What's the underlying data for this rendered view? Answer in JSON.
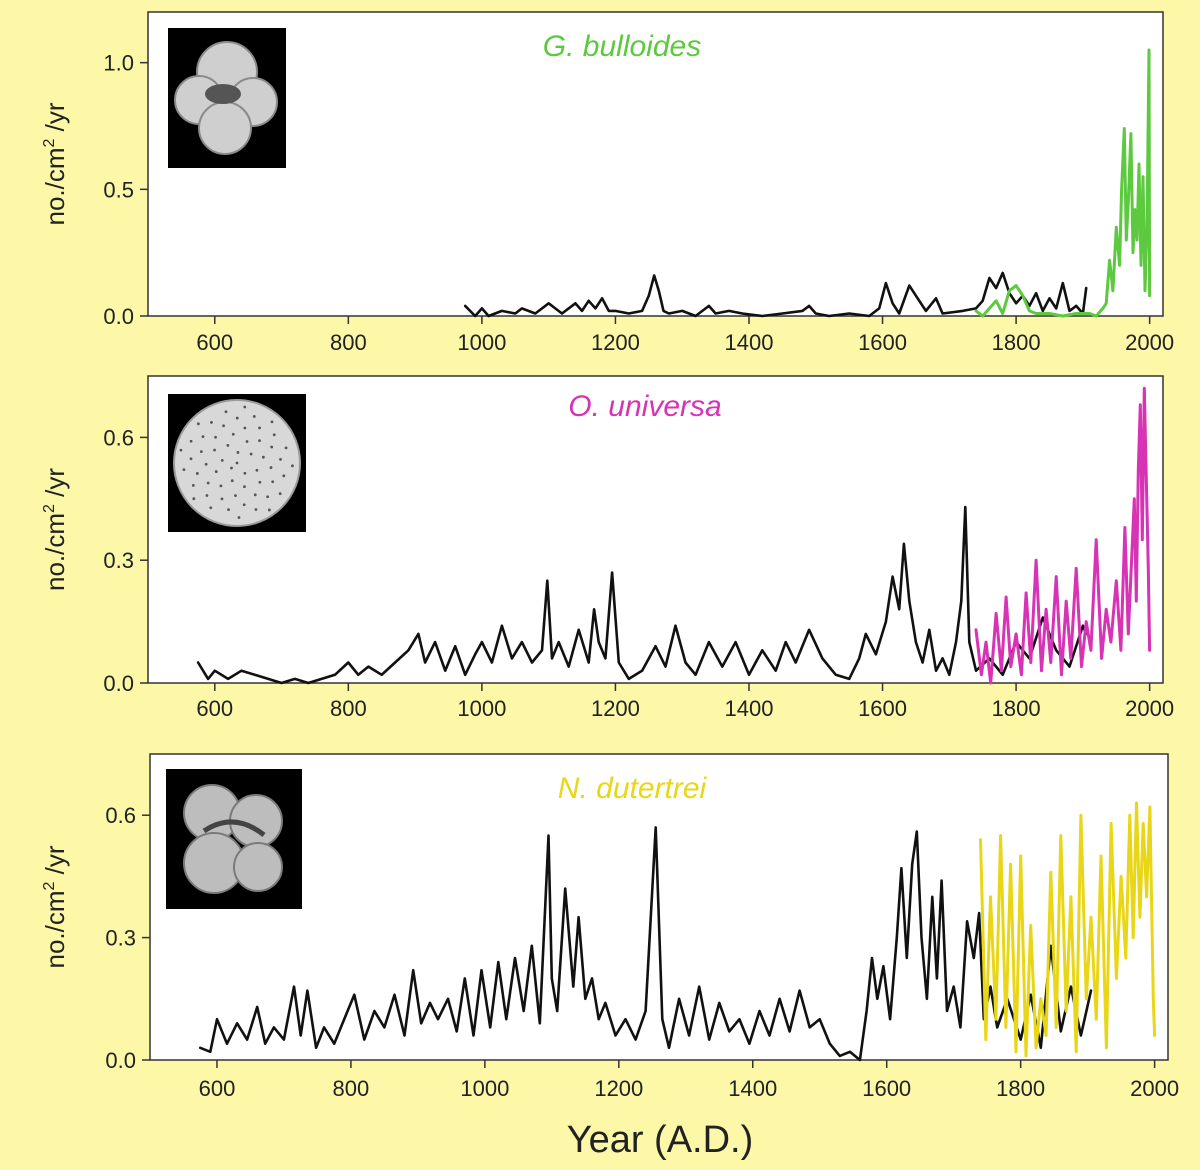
{
  "page": {
    "xlabel": "Year (A.D.)"
  },
  "chart_data": [
    {
      "type": "line",
      "title": "G. bulloides",
      "title_color": "#5cc93f",
      "ylabel_parts": [
        "no./cm",
        "2",
        " /yr"
      ],
      "xlim": [
        500,
        2020
      ],
      "ylim": [
        0,
        1.2
      ],
      "xticks": [
        600,
        800,
        1000,
        1200,
        1400,
        1600,
        1800,
        2000
      ],
      "yticks": [
        0.0,
        0.5,
        1.0
      ],
      "ytick_labels": [
        "0.0",
        "0.5",
        "1.0"
      ],
      "thumbnail_icon": "foraminifera-micrograph-icon",
      "series": [
        {
          "color": "#111111",
          "x": [
            975,
            990,
            1000,
            1010,
            1030,
            1050,
            1060,
            1080,
            1100,
            1110,
            1120,
            1140,
            1150,
            1160,
            1170,
            1180,
            1190,
            1200,
            1220,
            1240,
            1250,
            1258,
            1265,
            1272,
            1280,
            1300,
            1320,
            1340,
            1350,
            1370,
            1390,
            1420,
            1450,
            1480,
            1490,
            1500,
            1520,
            1550,
            1580,
            1595,
            1605,
            1615,
            1625,
            1640,
            1650,
            1665,
            1680,
            1690,
            1720,
            1740,
            1750,
            1760,
            1770,
            1780,
            1790,
            1800,
            1810,
            1820,
            1830,
            1840,
            1850,
            1860,
            1870,
            1880,
            1890,
            1900,
            1905
          ],
          "values": [
            0.04,
            0.0,
            0.03,
            0.0,
            0.02,
            0.01,
            0.03,
            0.01,
            0.05,
            0.03,
            0.01,
            0.05,
            0.02,
            0.06,
            0.03,
            0.07,
            0.02,
            0.02,
            0.01,
            0.02,
            0.08,
            0.16,
            0.1,
            0.02,
            0.01,
            0.02,
            0.0,
            0.04,
            0.01,
            0.02,
            0.01,
            0.0,
            0.01,
            0.02,
            0.04,
            0.01,
            0.0,
            0.01,
            0.0,
            0.03,
            0.13,
            0.05,
            0.01,
            0.12,
            0.08,
            0.02,
            0.07,
            0.01,
            0.02,
            0.03,
            0.06,
            0.15,
            0.11,
            0.17,
            0.09,
            0.05,
            0.08,
            0.04,
            0.09,
            0.02,
            0.07,
            0.03,
            0.13,
            0.02,
            0.04,
            0.01,
            0.11
          ]
        },
        {
          "color": "#5cc93f",
          "x": [
            1740,
            1750,
            1760,
            1770,
            1780,
            1790,
            1800,
            1810,
            1820,
            1830,
            1850,
            1870,
            1890,
            1910,
            1920,
            1930,
            1935,
            1940,
            1945,
            1950,
            1955,
            1958,
            1962,
            1965,
            1968,
            1972,
            1975,
            1978,
            1981,
            1984,
            1987,
            1990,
            1993,
            1996,
            1999,
            2000
          ],
          "values": [
            0.02,
            0.0,
            0.03,
            0.06,
            0.01,
            0.1,
            0.12,
            0.08,
            0.02,
            0.01,
            0.01,
            0.0,
            0.01,
            0.01,
            0.0,
            0.03,
            0.05,
            0.22,
            0.1,
            0.35,
            0.2,
            0.5,
            0.74,
            0.3,
            0.45,
            0.72,
            0.25,
            0.42,
            0.3,
            0.6,
            0.2,
            0.55,
            0.1,
            0.35,
            1.05,
            0.08
          ]
        }
      ]
    },
    {
      "type": "line",
      "title": "O. universa",
      "title_color": "#d633b5",
      "ylabel_parts": [
        "no./cm",
        "2",
        " /yr"
      ],
      "xlim": [
        500,
        2020
      ],
      "ylim": [
        0,
        0.75
      ],
      "xticks": [
        600,
        800,
        1000,
        1200,
        1400,
        1600,
        1800,
        2000
      ],
      "yticks": [
        0.0,
        0.3,
        0.6
      ],
      "ytick_labels": [
        "0.0",
        "0.3",
        "0.6"
      ],
      "thumbnail_icon": "foraminifera-micrograph-icon",
      "series": [
        {
          "color": "#111111",
          "x": [
            575,
            590,
            600,
            620,
            640,
            660,
            680,
            700,
            720,
            740,
            760,
            780,
            800,
            815,
            830,
            850,
            870,
            890,
            905,
            915,
            930,
            945,
            960,
            975,
            990,
            1000,
            1015,
            1030,
            1045,
            1060,
            1075,
            1090,
            1098,
            1105,
            1115,
            1130,
            1145,
            1160,
            1168,
            1175,
            1185,
            1195,
            1205,
            1220,
            1240,
            1260,
            1275,
            1290,
            1305,
            1320,
            1340,
            1360,
            1380,
            1400,
            1420,
            1440,
            1455,
            1470,
            1490,
            1510,
            1530,
            1550,
            1565,
            1575,
            1590,
            1605,
            1615,
            1625,
            1632,
            1640,
            1650,
            1660,
            1670,
            1680,
            1690,
            1700,
            1710,
            1718,
            1724,
            1730,
            1740,
            1760,
            1780,
            1800,
            1820,
            1840,
            1860,
            1880,
            1900,
            1905
          ],
          "values": [
            0.05,
            0.01,
            0.03,
            0.01,
            0.03,
            0.02,
            0.01,
            0.0,
            0.01,
            0.0,
            0.01,
            0.02,
            0.05,
            0.02,
            0.04,
            0.02,
            0.05,
            0.08,
            0.12,
            0.05,
            0.1,
            0.03,
            0.09,
            0.02,
            0.07,
            0.1,
            0.05,
            0.14,
            0.06,
            0.1,
            0.05,
            0.08,
            0.25,
            0.06,
            0.1,
            0.04,
            0.13,
            0.05,
            0.18,
            0.1,
            0.06,
            0.27,
            0.05,
            0.01,
            0.03,
            0.09,
            0.04,
            0.14,
            0.05,
            0.02,
            0.1,
            0.04,
            0.1,
            0.02,
            0.08,
            0.03,
            0.1,
            0.05,
            0.13,
            0.06,
            0.02,
            0.01,
            0.06,
            0.12,
            0.07,
            0.15,
            0.26,
            0.18,
            0.34,
            0.2,
            0.1,
            0.05,
            0.13,
            0.03,
            0.06,
            0.02,
            0.1,
            0.2,
            0.43,
            0.1,
            0.03,
            0.06,
            0.02,
            0.1,
            0.06,
            0.16,
            0.08,
            0.04,
            0.14,
            0.12
          ]
        },
        {
          "color": "#d633b5",
          "x": [
            1740,
            1748,
            1755,
            1762,
            1770,
            1778,
            1785,
            1792,
            1800,
            1808,
            1815,
            1822,
            1830,
            1838,
            1845,
            1852,
            1860,
            1868,
            1875,
            1882,
            1890,
            1898,
            1905,
            1912,
            1920,
            1928,
            1935,
            1942,
            1950,
            1957,
            1963,
            1968,
            1973,
            1977,
            1980,
            1983,
            1986,
            1989,
            1992,
            1995,
            1998,
            2000
          ],
          "values": [
            0.13,
            0.02,
            0.1,
            0.0,
            0.17,
            0.03,
            0.21,
            0.04,
            0.12,
            0.02,
            0.22,
            0.05,
            0.3,
            0.03,
            0.18,
            0.05,
            0.26,
            0.02,
            0.2,
            0.06,
            0.28,
            0.04,
            0.15,
            0.08,
            0.35,
            0.06,
            0.18,
            0.1,
            0.25,
            0.08,
            0.38,
            0.12,
            0.3,
            0.45,
            0.2,
            0.52,
            0.68,
            0.35,
            0.72,
            0.5,
            0.28,
            0.08
          ]
        }
      ]
    },
    {
      "type": "line",
      "title": "N. dutertrei",
      "title_color": "#e8d617",
      "ylabel_parts": [
        "no./cm",
        "2",
        " /yr"
      ],
      "xlim": [
        500,
        2020
      ],
      "ylim": [
        0,
        0.75
      ],
      "xticks": [
        600,
        800,
        1000,
        1200,
        1400,
        1600,
        1800,
        2000
      ],
      "yticks": [
        0.0,
        0.3,
        0.6
      ],
      "ytick_labels": [
        "0.0",
        "0.3",
        "0.6"
      ],
      "thumbnail_icon": "foraminifera-micrograph-icon",
      "series": [
        {
          "color": "#111111",
          "x": [
            575,
            590,
            600,
            615,
            630,
            645,
            660,
            672,
            685,
            700,
            715,
            725,
            735,
            748,
            760,
            775,
            790,
            805,
            820,
            835,
            850,
            865,
            880,
            893,
            905,
            918,
            930,
            945,
            958,
            970,
            983,
            995,
            1008,
            1020,
            1032,
            1045,
            1058,
            1070,
            1082,
            1095,
            1100,
            1108,
            1120,
            1132,
            1140,
            1150,
            1160,
            1170,
            1180,
            1195,
            1210,
            1225,
            1240,
            1255,
            1265,
            1275,
            1290,
            1305,
            1320,
            1335,
            1350,
            1365,
            1380,
            1395,
            1410,
            1425,
            1440,
            1455,
            1470,
            1485,
            1500,
            1515,
            1530,
            1545,
            1560,
            1570,
            1578,
            1586,
            1595,
            1605,
            1615,
            1622,
            1630,
            1638,
            1645,
            1652,
            1660,
            1668,
            1675,
            1682,
            1690,
            1700,
            1710,
            1720,
            1730,
            1738,
            1745,
            1755,
            1765,
            1780,
            1800,
            1815,
            1830,
            1845,
            1860,
            1875,
            1890,
            1905
          ],
          "values": [
            0.03,
            0.02,
            0.1,
            0.04,
            0.09,
            0.05,
            0.13,
            0.04,
            0.08,
            0.05,
            0.18,
            0.06,
            0.17,
            0.03,
            0.08,
            0.04,
            0.1,
            0.16,
            0.05,
            0.12,
            0.08,
            0.16,
            0.06,
            0.22,
            0.09,
            0.14,
            0.1,
            0.15,
            0.07,
            0.2,
            0.06,
            0.22,
            0.08,
            0.24,
            0.1,
            0.25,
            0.12,
            0.28,
            0.09,
            0.55,
            0.2,
            0.12,
            0.42,
            0.18,
            0.35,
            0.15,
            0.2,
            0.1,
            0.14,
            0.06,
            0.1,
            0.05,
            0.12,
            0.57,
            0.1,
            0.03,
            0.15,
            0.06,
            0.18,
            0.05,
            0.14,
            0.07,
            0.1,
            0.04,
            0.12,
            0.06,
            0.15,
            0.07,
            0.17,
            0.08,
            0.1,
            0.04,
            0.01,
            0.02,
            0.0,
            0.12,
            0.25,
            0.15,
            0.23,
            0.1,
            0.3,
            0.47,
            0.25,
            0.48,
            0.56,
            0.3,
            0.15,
            0.4,
            0.2,
            0.44,
            0.12,
            0.18,
            0.08,
            0.34,
            0.25,
            0.36,
            0.1,
            0.18,
            0.08,
            0.15,
            0.05,
            0.16,
            0.03,
            0.28,
            0.07,
            0.18,
            0.06,
            0.17
          ]
        },
        {
          "color": "#e8d617",
          "x": [
            1740,
            1748,
            1755,
            1763,
            1770,
            1778,
            1785,
            1793,
            1800,
            1808,
            1815,
            1823,
            1830,
            1838,
            1845,
            1853,
            1860,
            1868,
            1875,
            1883,
            1890,
            1898,
            1905,
            1913,
            1920,
            1928,
            1935,
            1943,
            1950,
            1957,
            1963,
            1968,
            1973,
            1978,
            1983,
            1988,
            1993,
            1998,
            2000
          ],
          "values": [
            0.54,
            0.05,
            0.4,
            0.1,
            0.55,
            0.08,
            0.48,
            0.02,
            0.5,
            0.01,
            0.33,
            0.03,
            0.15,
            0.06,
            0.46,
            0.08,
            0.55,
            0.12,
            0.4,
            0.02,
            0.6,
            0.15,
            0.35,
            0.1,
            0.5,
            0.03,
            0.58,
            0.2,
            0.45,
            0.25,
            0.6,
            0.3,
            0.63,
            0.35,
            0.58,
            0.4,
            0.62,
            0.15,
            0.06
          ]
        }
      ]
    }
  ]
}
